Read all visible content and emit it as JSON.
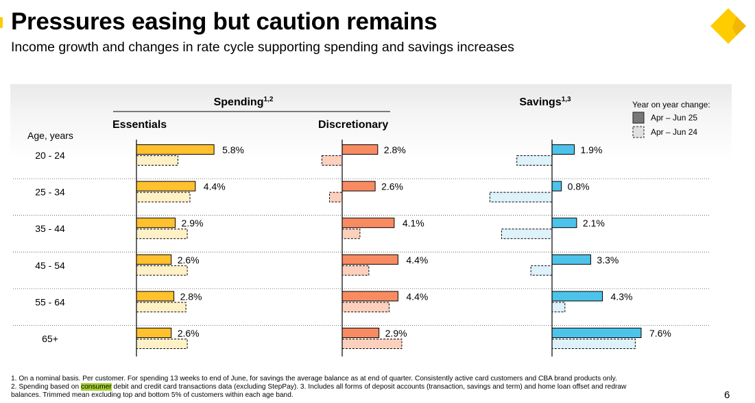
{
  "page": {
    "title": "Pressures easing but caution remains",
    "subtitle": "Income growth and changes in rate cycle supporting spending and savings increases",
    "page_number": "6",
    "footnotes": {
      "line1": "1. On a nominal basis. Per customer. For spending 13 weeks to end of June, for savings the average balance as at end of quarter. Consistently active card customers and CBA brand products only.",
      "line2_pre": "2. Spending based on ",
      "line2_highlight": "consumer",
      "line2_post": " debit and credit card transactions data (excluding StepPay).  3. Includes all forms of deposit accounts (transaction, savings and term) and home loan offset and redraw",
      "line3": "balances. Trimmed mean excluding top and bottom 5% of customers within each age band."
    },
    "colors": {
      "accent": "#FFCC00",
      "highlight": "#A6CE39",
      "essentials": "#FFC12E",
      "essentials_light": "#FFF1C6",
      "discretionary": "#F98B62",
      "discretionary_light": "#FDD0BD",
      "savings": "#4DC3EA",
      "savings_light": "#DDF2FA"
    }
  },
  "chart_data": {
    "type": "bar",
    "orientation": "horizontal",
    "spending_heading": "Spending",
    "spending_sup": "1,2",
    "savings_heading": "Savings",
    "savings_sup": "1,3",
    "row_axis_label": "Age, years",
    "categories": [
      "20 - 24",
      "25 - 34",
      "35 - 44",
      "45 - 54",
      "55 - 64",
      "65+"
    ],
    "legend": {
      "title": "Year on year change:",
      "entries": [
        "Apr – Jun 25",
        "Apr – Jun 24"
      ],
      "placement": "top-right"
    },
    "groups": [
      {
        "name": "Essentials",
        "series": [
          {
            "name": "Apr – Jun 25",
            "values": [
              5.8,
              4.4,
              2.9,
              2.6,
              2.8,
              2.6
            ]
          },
          {
            "name": "Apr – Jun 24",
            "values": [
              3.1,
              4.0,
              3.8,
              3.8,
              3.7,
              3.8
            ]
          }
        ],
        "labels": [
          "5.8%",
          "4.4%",
          "2.9%",
          "2.6%",
          "2.8%",
          "2.6%"
        ]
      },
      {
        "name": "Discretionary",
        "series": [
          {
            "name": "Apr – Jun 25",
            "values": [
              2.8,
              2.6,
              4.1,
              4.4,
              4.4,
              2.9
            ]
          },
          {
            "name": "Apr – Jun 24",
            "values": [
              -1.6,
              -1.0,
              1.4,
              2.1,
              3.7,
              4.7
            ]
          }
        ],
        "labels": [
          "2.8%",
          "2.6%",
          "4.1%",
          "4.4%",
          "4.4%",
          "2.9%"
        ]
      },
      {
        "name": "Savings",
        "series": [
          {
            "name": "Apr – Jun 25",
            "values": [
              1.9,
              0.8,
              2.1,
              3.3,
              4.3,
              7.6
            ]
          },
          {
            "name": "Apr – Jun 24",
            "values": [
              -3.0,
              -5.3,
              -4.3,
              -1.8,
              1.1,
              7.1
            ]
          }
        ],
        "labels": [
          "1.9%",
          "0.8%",
          "2.1%",
          "3.3%",
          "4.3%",
          "7.6%"
        ]
      }
    ]
  }
}
